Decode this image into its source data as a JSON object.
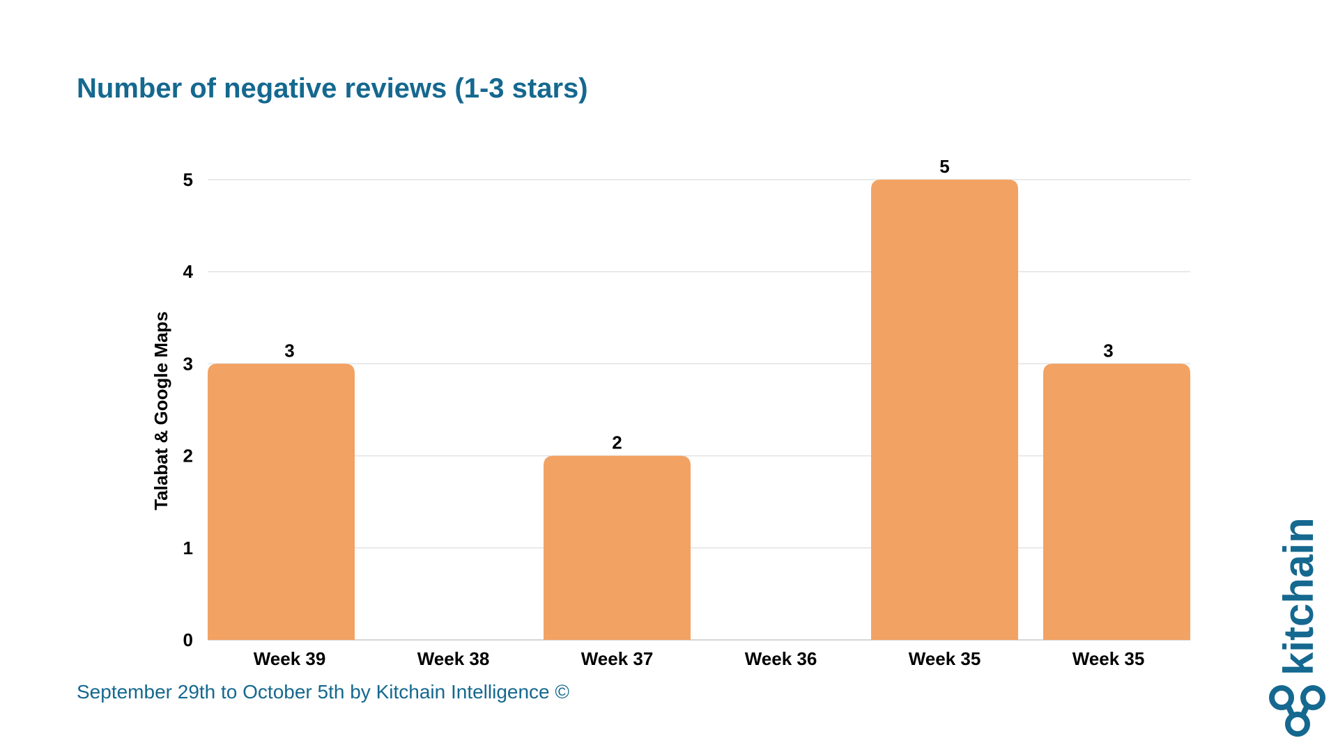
{
  "chart_data": {
    "type": "bar",
    "title": "Number of negative reviews (1-3 stars)",
    "ylabel": "Talabat & Google Maps",
    "xlabel": "",
    "categories": [
      "Week 39",
      "Week 38",
      "Week 37",
      "Week 36",
      "Week 35",
      "Week 35"
    ],
    "values": [
      3,
      0,
      2,
      0,
      5,
      3
    ],
    "data_labels": [
      "3",
      "",
      "2",
      "",
      "5",
      "3"
    ],
    "yticks": [
      0,
      1,
      2,
      3,
      4,
      5
    ],
    "ylim": [
      0,
      5
    ],
    "grid": true,
    "bar_color": "#f2a263"
  },
  "footer": {
    "text": "September 29th to October 5th by Kitchain Intelligence ©"
  },
  "logo": {
    "text": "kitchain",
    "icon": "kitchain-logo-icon"
  },
  "colors": {
    "accent": "#15688f",
    "bar": "#f2a263",
    "grid": "#e3e3e3"
  }
}
